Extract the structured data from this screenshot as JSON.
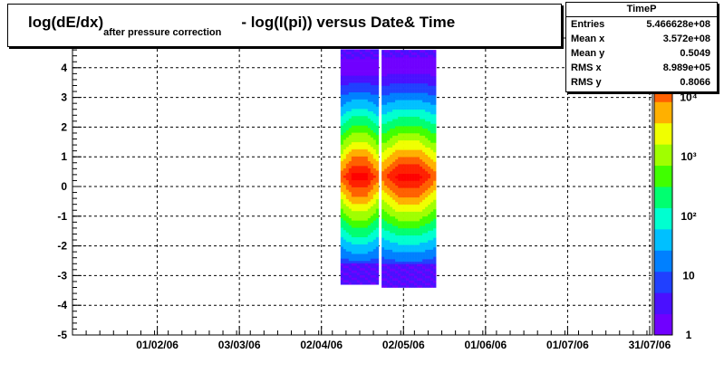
{
  "title": {
    "main": "log(dE/dx)",
    "subscript": "after pressure correction",
    "rest": "- log(I(pi)) versus Date& Time"
  },
  "stats": {
    "name": "TimeP",
    "rows": [
      {
        "label": "Entries",
        "value": "5.466628e+08"
      },
      {
        "label": "Mean x",
        "value": "3.572e+08"
      },
      {
        "label": "Mean y",
        "value": "0.5049"
      },
      {
        "label": "RMS x",
        "value": "8.989e+05"
      },
      {
        "label": "RMS y",
        "value": "0.8066"
      }
    ]
  },
  "chart_data": {
    "type": "heatmap",
    "x_tick_labels": [
      "01/02/06",
      "03/03/06",
      "02/04/06",
      "02/05/06",
      "01/06/06",
      "01/07/06",
      "31/07/06"
    ],
    "x_tick_dates": [
      "2006-02-01",
      "2006-03-03",
      "2006-04-02",
      "2006-05-02",
      "2006-06-01",
      "2006-07-01",
      "2006-07-31"
    ],
    "xlim": [
      "2006-01-01",
      "2006-08-01"
    ],
    "ylim": [
      -5,
      5
    ],
    "y_ticks": [
      -5,
      -4,
      -3,
      -2,
      -1,
      0,
      1,
      2,
      3,
      4
    ],
    "z_scale": "log",
    "zlim": [
      1,
      100000
    ],
    "z_tick_labels": [
      "1",
      "10",
      "10²",
      "10³",
      "10⁴",
      "10⁵"
    ],
    "grid": true,
    "bands": [
      {
        "date_start": "2006-04-09",
        "date_end": "2006-04-23",
        "y_min": -3.3,
        "y_max": 4.6
      },
      {
        "date_start": "2006-04-24",
        "date_end": "2006-05-14",
        "y_min": -3.4,
        "y_max": 4.6
      }
    ]
  },
  "colors": {
    "palette": [
      "#7000ff",
      "#4a10ff",
      "#2040ff",
      "#0080ff",
      "#00c0ff",
      "#00ffd0",
      "#00ff70",
      "#40ff00",
      "#a0ff00",
      "#f0ff00",
      "#ffb000",
      "#ff6000",
      "#ff2000",
      "#ff0000"
    ],
    "background": "#ffffff"
  }
}
